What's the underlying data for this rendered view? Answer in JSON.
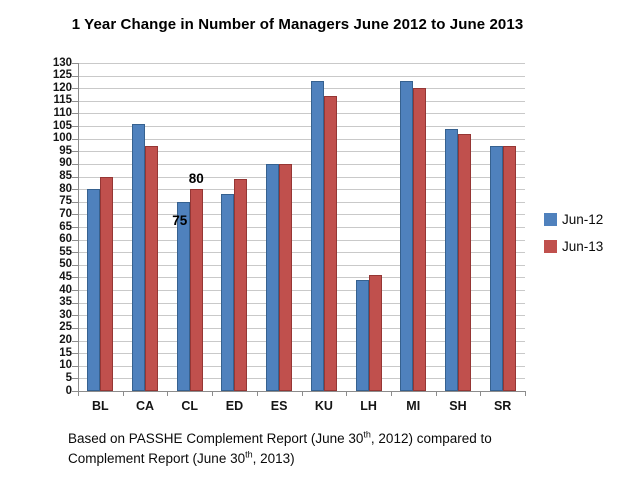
{
  "title": "1 Year Change in Number of Managers June 2012 to June 2013",
  "chart_data": {
    "type": "bar",
    "categories": [
      "BL",
      "CA",
      "CL",
      "ED",
      "ES",
      "KU",
      "LH",
      "MI",
      "SH",
      "SR"
    ],
    "series": [
      {
        "name": "Jun-12",
        "color": "#4F81BD",
        "border_color": "#36618F",
        "values": [
          80,
          106,
          75,
          78,
          90,
          123,
          44,
          123,
          104,
          97
        ]
      },
      {
        "name": "Jun-13",
        "color": "#C0504D",
        "border_color": "#953634",
        "values": [
          85,
          97,
          80,
          84,
          90,
          117,
          46,
          120,
          102,
          97
        ]
      }
    ],
    "ylim": [
      0,
      130
    ],
    "ytick_step": 5,
    "grid": "horizontal",
    "legend_position": "right",
    "data_labels": [
      {
        "text": "75",
        "category": "CL",
        "series": "Jun-12",
        "placement": "below-left"
      },
      {
        "text": "80",
        "category": "CL",
        "series": "Jun-13",
        "placement": "above"
      }
    ]
  },
  "footnote": {
    "line1_pre": "Based on PASSHE Complement Report (June 30",
    "line1_sup": "th",
    "line1_post": ", 2012) compared to",
    "line2_pre": "Complement Report (June 30",
    "line2_sup": "th",
    "line2_post": ", 2013)"
  },
  "colors": {
    "grid": "#C9C9C9",
    "axis": "#8C8C8C",
    "text": "#000000",
    "background": "#FFFFFF"
  }
}
